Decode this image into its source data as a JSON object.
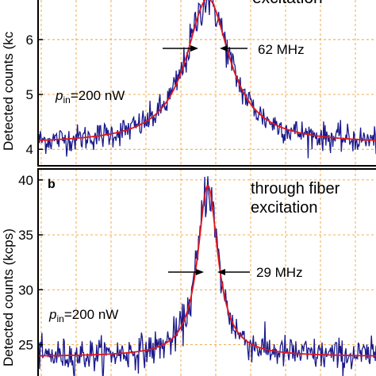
{
  "chart_data": [
    {
      "type": "line",
      "panel_label": "",
      "title_fragment": "excitation",
      "ylabel": "Detected counts (kcps)",
      "ylabel_visible": "Detected counts (kc",
      "xlim": [
        -200,
        200
      ],
      "ylim": [
        3.7,
        6.75
      ],
      "yticks": [
        4,
        5,
        6
      ],
      "ytick_labels": [
        "4",
        "5",
        "6"
      ],
      "grid": true,
      "power_label": "=200 nW",
      "power_symbol": "p",
      "power_subscript": "in",
      "linewidth_label": "62 MHz",
      "fit": {
        "baseline": 4.1,
        "peak": 6.75,
        "center": 0,
        "fwhm": 62
      },
      "series": [
        {
          "color": "#1a1a8c",
          "role": "measured"
        },
        {
          "color": "#e0161d",
          "role": "fit"
        }
      ]
    },
    {
      "type": "line",
      "panel_label": "b",
      "title_line1": "through fiber",
      "title_line2": "excitation",
      "ylabel": "Detected counts (kcps)",
      "xlim": [
        -200,
        200
      ],
      "ylim": [
        22,
        41
      ],
      "yticks": [
        25,
        30,
        35,
        40
      ],
      "ytick_labels": [
        "25",
        "30",
        "35",
        "40"
      ],
      "grid": true,
      "power_label": "=200 nW",
      "power_symbol": "p",
      "power_subscript": "in",
      "linewidth_label": "29 MHz",
      "fit": {
        "baseline": 23.9,
        "peak": 39.5,
        "center": 0,
        "fwhm": 29
      },
      "series": [
        {
          "color": "#1a1a8c",
          "role": "measured"
        },
        {
          "color": "#e0161d",
          "role": "fit"
        }
      ]
    }
  ]
}
